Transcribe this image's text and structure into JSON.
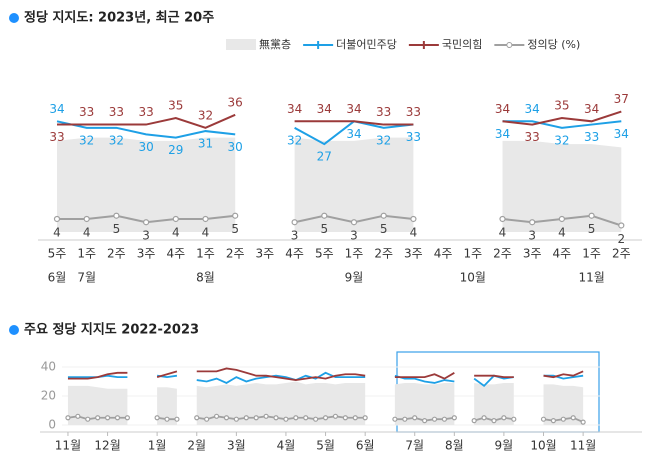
{
  "chart_data": [
    {
      "type": "line",
      "title": "정당 지지도: 2023년, 최근 20주",
      "legend": true,
      "data_labels": true,
      "categories": [
        "5주",
        "1주",
        "2주",
        "3주",
        "4주",
        "1주",
        "2주",
        "3주",
        "4주",
        "5주",
        "1주",
        "2주",
        "3주",
        "4주",
        "1주",
        "2주",
        "3주",
        "4주",
        "1주",
        "2주"
      ],
      "months": [
        "6월",
        "7월",
        null,
        null,
        null,
        "8월",
        null,
        null,
        null,
        null,
        "9월",
        null,
        null,
        null,
        "10월",
        null,
        null,
        null,
        "11월",
        null
      ],
      "ylim": [
        0,
        43
      ],
      "series": [
        {
          "name": "無黨층",
          "kind": "area",
          "color": "#e8e8e8",
          "values": [
            28,
            29,
            29,
            28,
            28,
            29,
            29,
            null,
            29,
            28,
            28,
            29,
            29,
            null,
            null,
            28,
            28,
            27,
            27,
            26
          ]
        },
        {
          "name": "더불어민주당",
          "kind": "line",
          "color": "#1ea0e6",
          "values": [
            34,
            32,
            32,
            30,
            29,
            31,
            30,
            null,
            32,
            27,
            34,
            32,
            33,
            null,
            null,
            34,
            34,
            32,
            33,
            34
          ]
        },
        {
          "name": "국민의힘",
          "kind": "line",
          "color": "#9b3a3a",
          "values": [
            33,
            33,
            33,
            33,
            35,
            32,
            36,
            null,
            34,
            34,
            34,
            33,
            33,
            null,
            null,
            34,
            33,
            35,
            34,
            37
          ]
        },
        {
          "name": "정의당 (%)",
          "kind": "line",
          "color": "#a0a0a0",
          "markers": true,
          "values": [
            4,
            4,
            5,
            3,
            4,
            4,
            5,
            null,
            3,
            5,
            3,
            5,
            4,
            null,
            null,
            4,
            3,
            4,
            5,
            2
          ]
        }
      ]
    },
    {
      "type": "line",
      "title": "주요 정당 지지도 2022-2023",
      "legend": false,
      "data_labels": false,
      "x": [
        0,
        1,
        2,
        3,
        4,
        5,
        6,
        7,
        8,
        9,
        10,
        11,
        12,
        13,
        14,
        15,
        16,
        17,
        18,
        19,
        20,
        21,
        22,
        23,
        24,
        25,
        26,
        27,
        28,
        29,
        30,
        31,
        32,
        33,
        34,
        35,
        36,
        37,
        38,
        39,
        40,
        41,
        42,
        43,
        44,
        45,
        46,
        47,
        48,
        49,
        50,
        51,
        52
      ],
      "xlim": [
        -0.5,
        53.5
      ],
      "xticks": [
        {
          "value": 0,
          "label": "11월"
        },
        {
          "value": 4,
          "label": "12월"
        },
        {
          "value": 9,
          "label": "1월"
        },
        {
          "value": 13,
          "label": "2월"
        },
        {
          "value": 17,
          "label": "3월"
        },
        {
          "value": 22,
          "label": "4월"
        },
        {
          "value": 26,
          "label": "5월"
        },
        {
          "value": 30,
          "label": "6월"
        },
        {
          "value": 35,
          "label": "7월"
        },
        {
          "value": 39,
          "label": "8월"
        },
        {
          "value": 44,
          "label": "9월"
        },
        {
          "value": 48,
          "label": "10월"
        },
        {
          "value": 52,
          "label": "11월"
        }
      ],
      "ylim": [
        0,
        45
      ],
      "yticks": [
        0,
        20,
        40
      ],
      "series": [
        {
          "name": "無黨층",
          "kind": "area",
          "color": "#e8e8e8",
          "values": [
            27,
            27,
            27,
            26,
            25,
            25,
            25,
            null,
            null,
            26,
            26,
            25,
            null,
            27,
            26,
            27,
            28,
            27,
            28,
            29,
            28,
            28,
            29,
            30,
            28,
            29,
            29,
            28,
            29,
            29,
            29,
            null,
            null,
            28,
            29,
            29,
            28,
            28,
            29,
            29,
            null,
            29,
            28,
            28,
            29,
            29,
            null,
            null,
            28,
            28,
            27,
            27,
            26
          ]
        },
        {
          "name": "더불어민주당",
          "kind": "line",
          "color": "#1ea0e6",
          "values": [
            33,
            33,
            33,
            33,
            34,
            33,
            33,
            null,
            null,
            34,
            33,
            34,
            null,
            31,
            30,
            32,
            29,
            33,
            30,
            32,
            33,
            34,
            33,
            31,
            34,
            32,
            36,
            33,
            33,
            33,
            33,
            null,
            null,
            34,
            32,
            32,
            30,
            29,
            31,
            30,
            null,
            32,
            27,
            34,
            32,
            33,
            null,
            null,
            34,
            34,
            32,
            33,
            34
          ]
        },
        {
          "name": "국민의힘",
          "kind": "line",
          "color": "#9b3a3a",
          "values": [
            32,
            32,
            32,
            33,
            35,
            36,
            36,
            null,
            null,
            33,
            35,
            37,
            null,
            37,
            37,
            37,
            39,
            38,
            36,
            34,
            34,
            33,
            32,
            31,
            32,
            33,
            32,
            34,
            35,
            35,
            34,
            null,
            null,
            33,
            33,
            33,
            33,
            35,
            32,
            36,
            null,
            34,
            34,
            34,
            33,
            33,
            null,
            null,
            34,
            33,
            35,
            34,
            37
          ]
        },
        {
          "name": "정의당 (%)",
          "kind": "line",
          "color": "#a0a0a0",
          "markers": true,
          "values": [
            5,
            6,
            4,
            5,
            5,
            5,
            5,
            null,
            null,
            5,
            4,
            4,
            null,
            5,
            4,
            6,
            5,
            4,
            5,
            5,
            6,
            5,
            4,
            5,
            5,
            4,
            5,
            6,
            5,
            5,
            5,
            null,
            null,
            4,
            4,
            5,
            3,
            4,
            4,
            5,
            null,
            3,
            5,
            3,
            5,
            4,
            null,
            null,
            4,
            3,
            4,
            5,
            2
          ]
        }
      ]
    }
  ]
}
